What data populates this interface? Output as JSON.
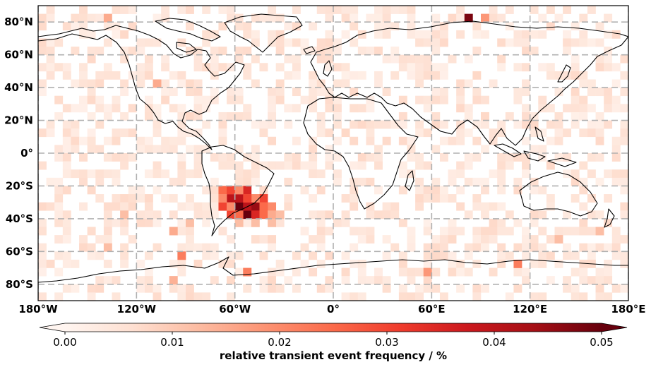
{
  "map": {
    "projection": "plate-carree",
    "lon_range": [
      -180,
      180
    ],
    "lat_range": [
      -90,
      90
    ],
    "lon_ticks": [
      {
        "value": -180,
        "label": "180°W"
      },
      {
        "value": -120,
        "label": "120°W"
      },
      {
        "value": -60,
        "label": "60°W"
      },
      {
        "value": 0,
        "label": "0°"
      },
      {
        "value": 60,
        "label": "60°E"
      },
      {
        "value": 120,
        "label": "120°E"
      },
      {
        "value": 180,
        "label": "180°E"
      }
    ],
    "lat_ticks": [
      {
        "value": 80,
        "label": "80°N"
      },
      {
        "value": 60,
        "label": "60°N"
      },
      {
        "value": 40,
        "label": "40°N"
      },
      {
        "value": 20,
        "label": "20°N"
      },
      {
        "value": 0,
        "label": "0°"
      },
      {
        "value": -20,
        "label": "20°S"
      },
      {
        "value": -40,
        "label": "40°S"
      },
      {
        "value": -60,
        "label": "60°S"
      },
      {
        "value": -80,
        "label": "80°S"
      }
    ],
    "grid": true,
    "gridline_color": "#b0b0b0",
    "coastline_color": "#000000",
    "background": "#ffffff",
    "cell_size_deg": 5,
    "hotspots": [
      {
        "lon": -57.5,
        "lat": -32.5,
        "value": 0.05
      },
      {
        "lon": -52.5,
        "lat": -37.5,
        "value": 0.05
      },
      {
        "lon": -62.5,
        "lat": -27.5,
        "value": 0.04
      },
      {
        "lon": -47.5,
        "lat": -32.5,
        "value": 0.045
      },
      {
        "lon": -57.5,
        "lat": -27.5,
        "value": 0.04
      },
      {
        "lon": -52.5,
        "lat": -22.5,
        "value": 0.035
      },
      {
        "lon": -67.5,
        "lat": -32.5,
        "value": 0.03
      },
      {
        "lon": -42.5,
        "lat": -27.5,
        "value": 0.03
      },
      {
        "lon": -62.5,
        "lat": -37.5,
        "value": 0.03
      },
      {
        "lon": -47.5,
        "lat": -37.5,
        "value": 0.035
      },
      {
        "lon": -42.5,
        "lat": -37.5,
        "value": 0.025
      },
      {
        "lon": -37.5,
        "lat": -32.5,
        "value": 0.02
      },
      {
        "lon": -67.5,
        "lat": -22.5,
        "value": 0.025
      },
      {
        "lon": -62.5,
        "lat": -22.5,
        "value": 0.03
      },
      {
        "lon": -57.5,
        "lat": -22.5,
        "value": 0.02
      },
      {
        "lon": -47.5,
        "lat": -27.5,
        "value": 0.02
      },
      {
        "lon": -67.5,
        "lat": -27.5,
        "value": 0.02
      },
      {
        "lon": -52.5,
        "lat": -32.5,
        "value": 0.04
      },
      {
        "lon": -57.5,
        "lat": -37.5,
        "value": 0.025
      },
      {
        "lon": -52.5,
        "lat": -27.5,
        "value": 0.03
      },
      {
        "lon": -42.5,
        "lat": -32.5,
        "value": 0.025
      },
      {
        "lon": -37.5,
        "lat": -37.5,
        "value": 0.015
      },
      {
        "lon": -32.5,
        "lat": -37.5,
        "value": 0.012
      },
      {
        "lon": -57.5,
        "lat": -42.5,
        "value": 0.012
      },
      {
        "lon": -47.5,
        "lat": -42.5,
        "value": 0.012
      },
      {
        "lon": -37.5,
        "lat": -42.5,
        "value": 0.012
      },
      {
        "lon": -62.5,
        "lat": -32.5,
        "value": 0.02
      },
      {
        "lon": 82.5,
        "lat": 82.5,
        "value": 0.048
      },
      {
        "lon": 92.5,
        "lat": 82.5,
        "value": 0.018
      },
      {
        "lon": -137.5,
        "lat": 82.5,
        "value": 0.015
      },
      {
        "lon": -107.5,
        "lat": 42.5,
        "value": 0.015
      },
      {
        "lon": -92.5,
        "lat": -62.5,
        "value": 0.022
      },
      {
        "lon": -97.5,
        "lat": -47.5,
        "value": 0.015
      },
      {
        "lon": -52.5,
        "lat": -72.5,
        "value": 0.022
      },
      {
        "lon": 57.5,
        "lat": -72.5,
        "value": 0.018
      },
      {
        "lon": 112.5,
        "lat": -67.5,
        "value": 0.022
      },
      {
        "lon": -127.5,
        "lat": -37.5,
        "value": 0.012
      },
      {
        "lon": -87.5,
        "lat": -42.5,
        "value": 0.012
      },
      {
        "lon": -137.5,
        "lat": -57.5,
        "value": 0.012
      },
      {
        "lon": -97.5,
        "lat": -77.5,
        "value": 0.014
      },
      {
        "lon": 137.5,
        "lat": -52.5,
        "value": 0.012
      },
      {
        "lon": 162.5,
        "lat": -47.5,
        "value": 0.012
      }
    ]
  },
  "colorbar": {
    "min": 0.0,
    "max": 0.05,
    "extend": "both",
    "colormap": "Reds",
    "colors": [
      "#fff5f0",
      "#fee0d2",
      "#fcbba1",
      "#fc9272",
      "#fb6a4a",
      "#ef3b2c",
      "#cb181d",
      "#a50f15",
      "#67000d"
    ],
    "ticks": [
      {
        "value": 0.0,
        "label": "0.00"
      },
      {
        "value": 0.01,
        "label": "0.01"
      },
      {
        "value": 0.02,
        "label": "0.02"
      },
      {
        "value": 0.03,
        "label": "0.03"
      },
      {
        "value": 0.04,
        "label": "0.04"
      },
      {
        "value": 0.05,
        "label": "0.05"
      }
    ],
    "title": "relative transient event frequency / %"
  }
}
